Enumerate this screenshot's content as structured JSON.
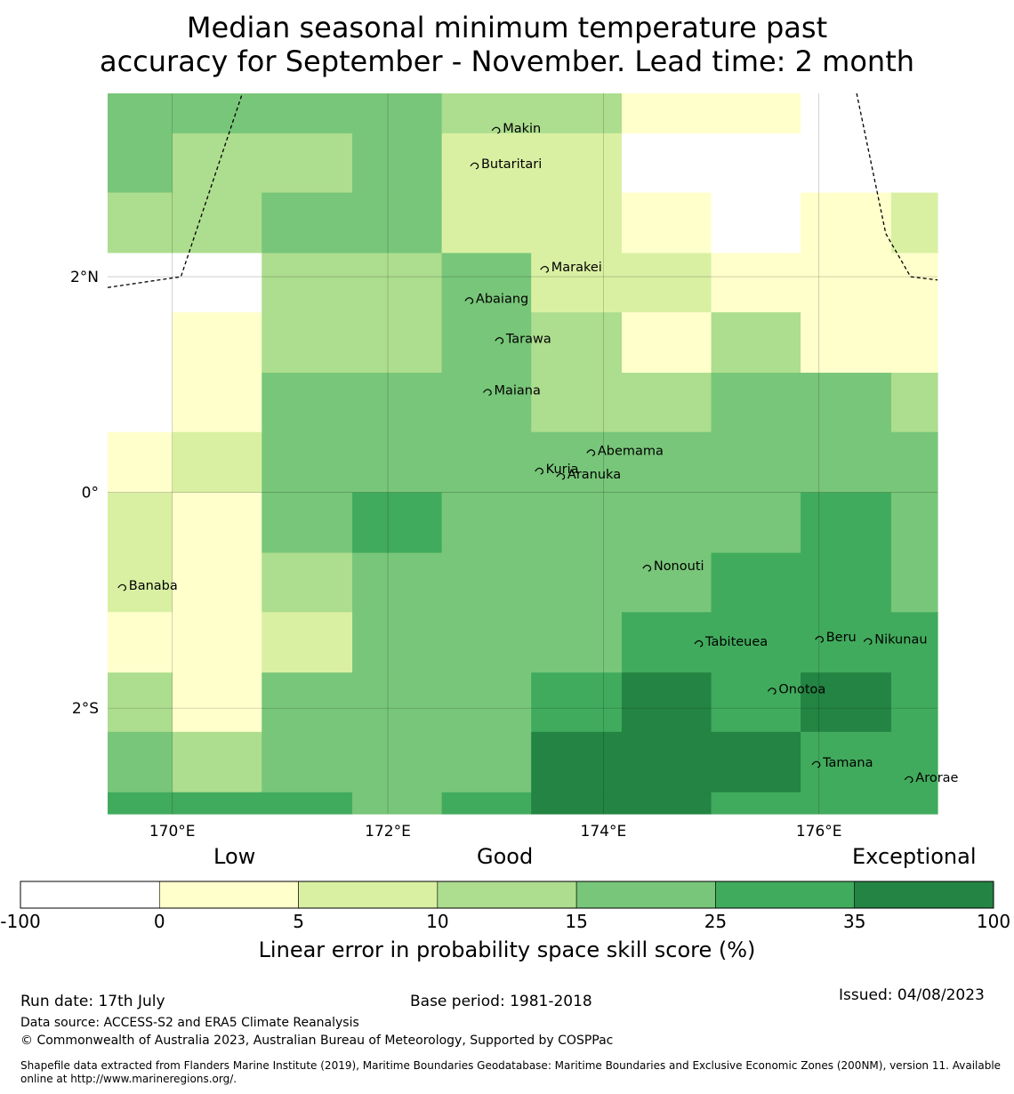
{
  "title_line1": "Median seasonal minimum temperature past",
  "title_line2": "accuracy for September - November. Lead time: 2 month",
  "map": {
    "lon_range": [
      169.4,
      177.1
    ],
    "lat_range": [
      -2.98,
      3.7
    ],
    "grid_lons": [
      170,
      172,
      174,
      176
    ],
    "grid_lats": [
      2,
      0,
      -2
    ],
    "lon_labels": [
      "170°E",
      "172°E",
      "174°E",
      "176°E"
    ],
    "lat_labels": [
      "2°N",
      "0°",
      "2°S"
    ],
    "cells": {
      "lon_edges": [
        169.4,
        170.0,
        170.83,
        171.67,
        172.5,
        173.33,
        174.17,
        175.0,
        175.83,
        176.67,
        177.1
      ],
      "lat_edges": [
        3.7,
        3.33,
        2.78,
        2.22,
        1.67,
        1.11,
        0.56,
        0.0,
        -0.56,
        -1.11,
        -1.67,
        -2.22,
        -2.78,
        -2.98
      ],
      "classes": [
        [
          4,
          4,
          4,
          4,
          3,
          3,
          1,
          1,
          0,
          0
        ],
        [
          4,
          3,
          3,
          4,
          2,
          2,
          0,
          0,
          0,
          0
        ],
        [
          3,
          3,
          4,
          4,
          2,
          2,
          1,
          0,
          1,
          2
        ],
        [
          0,
          0,
          3,
          3,
          4,
          2,
          2,
          1,
          1,
          1
        ],
        [
          0,
          1,
          3,
          3,
          4,
          3,
          1,
          3,
          1,
          1
        ],
        [
          0,
          1,
          4,
          4,
          4,
          3,
          3,
          4,
          4,
          3
        ],
        [
          1,
          2,
          4,
          4,
          4,
          4,
          4,
          4,
          4,
          4
        ],
        [
          2,
          1,
          4,
          5,
          4,
          4,
          4,
          4,
          5,
          4
        ],
        [
          2,
          1,
          3,
          4,
          4,
          4,
          4,
          5,
          5,
          4
        ],
        [
          1,
          1,
          2,
          4,
          4,
          4,
          5,
          5,
          5,
          5
        ],
        [
          3,
          1,
          4,
          4,
          4,
          5,
          6,
          5,
          6,
          5
        ],
        [
          4,
          3,
          4,
          4,
          4,
          6,
          6,
          6,
          5,
          5
        ],
        [
          5,
          5,
          5,
          4,
          5,
          6,
          6,
          5,
          5,
          5
        ]
      ]
    },
    "eez_boundaries": [
      [
        [
          169.4,
          1.9
        ],
        [
          170.08,
          2.0
        ],
        [
          170.65,
          3.7
        ]
      ],
      [
        [
          176.35,
          3.7
        ],
        [
          176.62,
          2.4
        ],
        [
          176.85,
          2.0
        ],
        [
          177.1,
          1.97
        ]
      ]
    ],
    "islands": [
      {
        "name": "Makin",
        "lon": 173.0,
        "lat": 3.38
      },
      {
        "name": "Butaritari",
        "lon": 172.8,
        "lat": 3.05
      },
      {
        "name": "Marakei",
        "lon": 173.45,
        "lat": 2.09
      },
      {
        "name": "Abaiang",
        "lon": 172.75,
        "lat": 1.8
      },
      {
        "name": "Tarawa",
        "lon": 173.03,
        "lat": 1.43
      },
      {
        "name": "Maiana",
        "lon": 172.92,
        "lat": 0.95
      },
      {
        "name": "Abemama",
        "lon": 173.88,
        "lat": 0.39
      },
      {
        "name": "Kuria",
        "lon": 173.4,
        "lat": 0.22
      },
      {
        "name": "Aranuka",
        "lon": 173.6,
        "lat": 0.17
      },
      {
        "name": "Banaba",
        "lon": 169.53,
        "lat": -0.86
      },
      {
        "name": "Nonouti",
        "lon": 174.4,
        "lat": -0.68
      },
      {
        "name": "Tabiteuea",
        "lon": 174.88,
        "lat": -1.38
      },
      {
        "name": "Beru",
        "lon": 176.0,
        "lat": -1.34
      },
      {
        "name": "Nikunau",
        "lon": 176.45,
        "lat": -1.36
      },
      {
        "name": "Onotoa",
        "lon": 175.56,
        "lat": -1.82
      },
      {
        "name": "Tamana",
        "lon": 175.97,
        "lat": -2.5
      },
      {
        "name": "Arorae",
        "lon": 176.83,
        "lat": -2.64
      }
    ]
  },
  "colorbar": {
    "header_labels": [
      "Low",
      "Good",
      "Exceptional"
    ],
    "ticks": [
      "-100",
      "0",
      "5",
      "10",
      "15",
      "25",
      "35",
      "100"
    ],
    "colors": [
      "#ffffff",
      "#ffffcc",
      "#d9f0a3",
      "#addd8e",
      "#78c679",
      "#41ab5d",
      "#238443"
    ],
    "label": "Linear error in probability space skill score (%)"
  },
  "footer": {
    "run_date": "Run date: 17th July",
    "base_period": "Base period: 1981-2018",
    "issued": "Issued: 04/08/2023",
    "data_source": "Data source: ACCESS-S2 and ERA5 Climate Reanalysis",
    "copyright": "© Commonwealth of Australia 2023, Australian Bureau of Meteorology, Supported by COSPPac",
    "shapefile_line1": "Shapefile data extracted from Flanders Marine Institute (2019), Maritime Boundaries Geodatabase: Maritime Boundaries and Exclusive Economic Zones (200NM), version 11. Available",
    "shapefile_line2": "online at http://www.marineregions.org/."
  }
}
